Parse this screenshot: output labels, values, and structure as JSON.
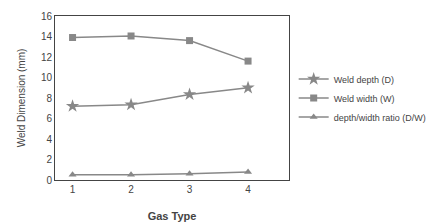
{
  "chart_data": {
    "type": "line",
    "x": [
      1,
      2,
      3,
      4
    ],
    "series": [
      {
        "name": "Weld depth (D)",
        "color": "#888888",
        "marker": "star",
        "values": [
          7.2,
          7.35,
          8.35,
          9.0
        ]
      },
      {
        "name": "Weld width (W)",
        "color": "#888888",
        "marker": "square",
        "values": [
          13.9,
          14.05,
          13.6,
          11.6
        ]
      },
      {
        "name": "depth/width ratio (D/W)",
        "color": "#888888",
        "marker": "triangle",
        "values": [
          0.52,
          0.52,
          0.61,
          0.77
        ]
      }
    ],
    "xlabel": "Gas Type",
    "ylabel": "Weld Dimension (mm)",
    "xlim": [
      0.7,
      4.7
    ],
    "xticks": [
      1,
      2,
      3,
      4
    ],
    "ylim": [
      0,
      16
    ],
    "yticks": [
      0,
      2,
      4,
      6,
      8,
      10,
      12,
      14,
      16
    ],
    "grid": false,
    "legend": "right"
  }
}
